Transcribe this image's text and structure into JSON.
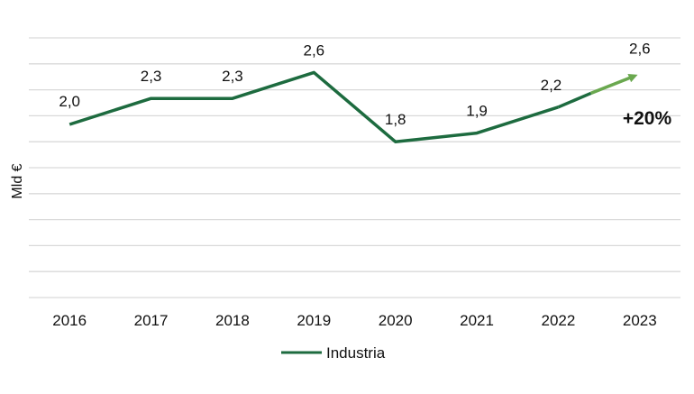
{
  "chart_data": {
    "type": "line",
    "categories": [
      "2016",
      "2017",
      "2018",
      "2019",
      "2020",
      "2021",
      "2022",
      "2023"
    ],
    "series": [
      {
        "name": "Industria",
        "values": [
          2.0,
          2.3,
          2.3,
          2.6,
          1.8,
          1.9,
          2.2,
          2.6
        ],
        "labels": [
          "2,0",
          "2,3",
          "2,3",
          "2,6",
          "1,8",
          "1,9",
          "2,2",
          "2,6"
        ],
        "color": "#1d6b3f",
        "projection_color": "#6aa84f"
      }
    ],
    "title": "",
    "xlabel": "",
    "ylabel": "Mld €",
    "ylim": [
      0,
      3.0
    ],
    "grid": true,
    "legend": "bottom",
    "annotation": "+20%"
  }
}
